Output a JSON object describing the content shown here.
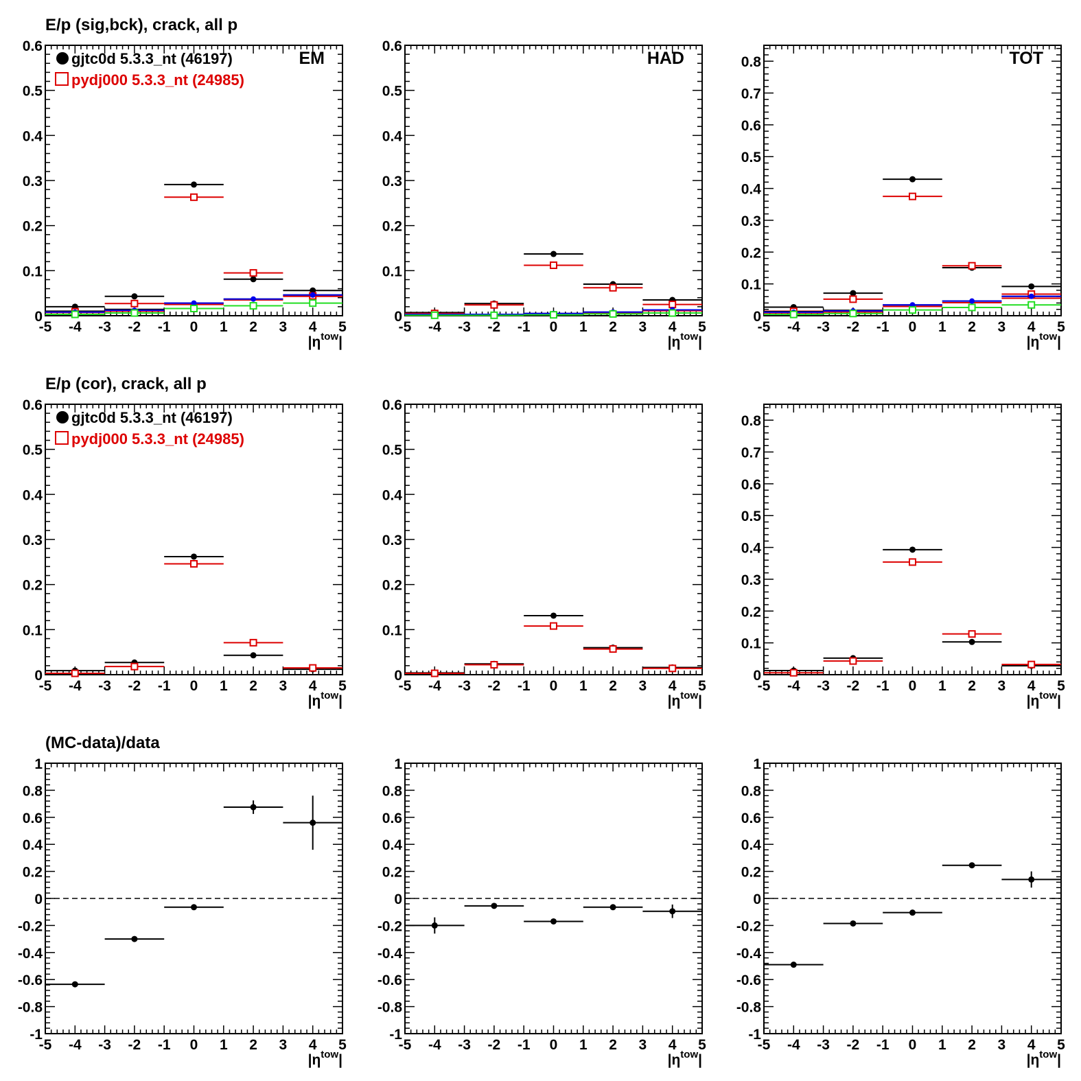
{
  "row_titles": [
    "E/p (sig,bck), crack, all p",
    "E/p (cor), crack, all p",
    "(MC-data)/data"
  ],
  "legend": {
    "data_label": "gjtc0d 5.3.3_nt (46197)",
    "mc_label": "pydj000 5.3.3_nt (24985)"
  },
  "colors": {
    "data": "#000000",
    "mc": "#dd0000",
    "blue": "#0000ee",
    "green": "#22dd22"
  },
  "chart_data": [
    {
      "type": "scatter",
      "row": 0,
      "col": 0,
      "tag": "EM",
      "legend": true,
      "xlim": [
        -5,
        5
      ],
      "ylim": [
        0,
        0.6
      ],
      "xticks": [
        "-5",
        "-4",
        "-3",
        "-2",
        "-1",
        "0",
        "1",
        "2",
        "3",
        "4",
        "5"
      ],
      "yticks": [
        "0",
        "0.1",
        "0.2",
        "0.3",
        "0.4",
        "0.5",
        "0.6"
      ],
      "xlabel": {
        "main": "|η",
        "sup": "tow",
        "close": "|"
      },
      "series": [
        {
          "key": "data",
          "style": "filled",
          "points": [
            {
              "x": -4,
              "y": 0.02
            },
            {
              "x": -2,
              "y": 0.043
            },
            {
              "x": 0,
              "y": 0.291
            },
            {
              "x": 2,
              "y": 0.081
            },
            {
              "x": 4,
              "y": 0.056
            }
          ]
        },
        {
          "key": "mc",
          "style": "open",
          "points": [
            {
              "x": -4,
              "y": 0.009
            },
            {
              "x": -2,
              "y": 0.027
            },
            {
              "x": 0,
              "y": 0.263
            },
            {
              "x": 2,
              "y": 0.095
            },
            {
              "x": 4,
              "y": 0.044
            }
          ]
        },
        {
          "key": "data",
          "style": "line",
          "points": [
            {
              "x": -4,
              "y": 0.01
            },
            {
              "x": -2,
              "y": 0.014
            },
            {
              "x": 0,
              "y": 0.028
            },
            {
              "x": 2,
              "y": 0.037
            },
            {
              "x": 4,
              "y": 0.046
            }
          ]
        },
        {
          "key": "mc",
          "style": "line",
          "points": [
            {
              "x": -4,
              "y": 0.007
            },
            {
              "x": -2,
              "y": 0.01
            },
            {
              "x": 0,
              "y": 0.025
            },
            {
              "x": 2,
              "y": 0.035
            },
            {
              "x": 4,
              "y": 0.043
            }
          ]
        },
        {
          "key": "blue",
          "style": "filled-small",
          "points": [
            {
              "x": -4,
              "y": 0.008
            },
            {
              "x": -2,
              "y": 0.012
            },
            {
              "x": 0,
              "y": 0.028
            },
            {
              "x": 2,
              "y": 0.037
            },
            {
              "x": 4,
              "y": 0.046
            }
          ]
        },
        {
          "key": "green",
          "style": "open",
          "points": [
            {
              "x": -4,
              "y": 0.003
            },
            {
              "x": -2,
              "y": 0.006
            },
            {
              "x": 0,
              "y": 0.016
            },
            {
              "x": 2,
              "y": 0.022
            },
            {
              "x": 4,
              "y": 0.028
            }
          ]
        }
      ]
    },
    {
      "type": "scatter",
      "row": 0,
      "col": 1,
      "tag": "HAD",
      "legend": false,
      "xlim": [
        -5,
        5
      ],
      "ylim": [
        0,
        0.6
      ],
      "xticks": [
        "-5",
        "-4",
        "-3",
        "-2",
        "-1",
        "0",
        "1",
        "2",
        "3",
        "4",
        "5"
      ],
      "yticks": [
        "0",
        "0.1",
        "0.2",
        "0.3",
        "0.4",
        "0.5",
        "0.6"
      ],
      "xlabel": {
        "main": "|η",
        "sup": "tow",
        "close": "|"
      },
      "series": [
        {
          "key": "data",
          "style": "filled",
          "points": [
            {
              "x": -4,
              "y": 0.007
            },
            {
              "x": -2,
              "y": 0.027
            },
            {
              "x": 0,
              "y": 0.137
            },
            {
              "x": 2,
              "y": 0.07
            },
            {
              "x": 4,
              "y": 0.035
            }
          ]
        },
        {
          "key": "mc",
          "style": "open",
          "points": [
            {
              "x": -4,
              "y": 0.005
            },
            {
              "x": -2,
              "y": 0.024
            },
            {
              "x": 0,
              "y": 0.112
            },
            {
              "x": 2,
              "y": 0.062
            },
            {
              "x": 4,
              "y": 0.025
            }
          ]
        },
        {
          "key": "data",
          "style": "line",
          "points": [
            {
              "x": -4,
              "y": 0.003
            },
            {
              "x": -2,
              "y": 0.003
            },
            {
              "x": 0,
              "y": 0.005
            },
            {
              "x": 2,
              "y": 0.008
            },
            {
              "x": 4,
              "y": 0.013
            }
          ]
        },
        {
          "key": "mc",
          "style": "line",
          "points": [
            {
              "x": -4,
              "y": 0.002
            },
            {
              "x": -2,
              "y": 0.002
            },
            {
              "x": 0,
              "y": 0.004
            },
            {
              "x": 2,
              "y": 0.006
            },
            {
              "x": 4,
              "y": 0.011
            }
          ]
        },
        {
          "key": "blue",
          "style": "filled-small",
          "points": [
            {
              "x": -4,
              "y": 0.003
            },
            {
              "x": -2,
              "y": 0.003
            },
            {
              "x": 0,
              "y": 0.005
            },
            {
              "x": 2,
              "y": 0.008
            },
            {
              "x": 4,
              "y": 0.013
            }
          ]
        },
        {
          "key": "green",
          "style": "open",
          "points": [
            {
              "x": -4,
              "y": 0.001
            },
            {
              "x": -2,
              "y": 0.001
            },
            {
              "x": 0,
              "y": 0.002
            },
            {
              "x": 2,
              "y": 0.004
            },
            {
              "x": 4,
              "y": 0.006
            }
          ]
        }
      ]
    },
    {
      "type": "scatter",
      "row": 0,
      "col": 2,
      "tag": "TOT",
      "legend": false,
      "xlim": [
        -5,
        5
      ],
      "ylim": [
        0,
        0.85
      ],
      "xticks": [
        "-5",
        "-4",
        "-3",
        "-2",
        "-1",
        "0",
        "1",
        "2",
        "3",
        "4",
        "5"
      ],
      "yticks": [
        "0",
        "0.1",
        "0.2",
        "0.3",
        "0.4",
        "0.5",
        "0.6",
        "0.7",
        "0.8"
      ],
      "xlabel": {
        "main": "|η",
        "sup": "tow",
        "close": "|"
      },
      "series": [
        {
          "key": "data",
          "style": "filled",
          "points": [
            {
              "x": -4,
              "y": 0.027
            },
            {
              "x": -2,
              "y": 0.071
            },
            {
              "x": 0,
              "y": 0.429
            },
            {
              "x": 2,
              "y": 0.151
            },
            {
              "x": 4,
              "y": 0.092
            }
          ]
        },
        {
          "key": "mc",
          "style": "open",
          "points": [
            {
              "x": -4,
              "y": 0.014
            },
            {
              "x": -2,
              "y": 0.052
            },
            {
              "x": 0,
              "y": 0.375
            },
            {
              "x": 2,
              "y": 0.157
            },
            {
              "x": 4,
              "y": 0.068
            }
          ]
        },
        {
          "key": "data",
          "style": "line",
          "points": [
            {
              "x": -4,
              "y": 0.013
            },
            {
              "x": -2,
              "y": 0.017
            },
            {
              "x": 0,
              "y": 0.034
            },
            {
              "x": 2,
              "y": 0.046
            },
            {
              "x": 4,
              "y": 0.061
            }
          ]
        },
        {
          "key": "mc",
          "style": "line",
          "points": [
            {
              "x": -4,
              "y": 0.009
            },
            {
              "x": -2,
              "y": 0.012
            },
            {
              "x": 0,
              "y": 0.029
            },
            {
              "x": 2,
              "y": 0.041
            },
            {
              "x": 4,
              "y": 0.055
            }
          ]
        },
        {
          "key": "blue",
          "style": "filled-small",
          "points": [
            {
              "x": -4,
              "y": 0.011
            },
            {
              "x": -2,
              "y": 0.015
            },
            {
              "x": 0,
              "y": 0.034
            },
            {
              "x": 2,
              "y": 0.046
            },
            {
              "x": 4,
              "y": 0.061
            }
          ]
        },
        {
          "key": "green",
          "style": "open",
          "points": [
            {
              "x": -4,
              "y": 0.004
            },
            {
              "x": -2,
              "y": 0.007
            },
            {
              "x": 0,
              "y": 0.018
            },
            {
              "x": 2,
              "y": 0.026
            },
            {
              "x": 4,
              "y": 0.034
            }
          ]
        }
      ]
    },
    {
      "type": "scatter",
      "row": 1,
      "col": 0,
      "tag": "",
      "legend": true,
      "xlim": [
        -5,
        5
      ],
      "ylim": [
        0,
        0.6
      ],
      "xticks": [
        "-5",
        "-4",
        "-3",
        "-2",
        "-1",
        "0",
        "1",
        "2",
        "3",
        "4",
        "5"
      ],
      "yticks": [
        "0",
        "0.1",
        "0.2",
        "0.3",
        "0.4",
        "0.5",
        "0.6"
      ],
      "xlabel": {
        "main": "|η",
        "sup": "tow",
        "close": "|"
      },
      "series": [
        {
          "key": "data",
          "style": "filled",
          "points": [
            {
              "x": -4,
              "y": 0.009
            },
            {
              "x": -2,
              "y": 0.027
            },
            {
              "x": 0,
              "y": 0.262
            },
            {
              "x": 2,
              "y": 0.043
            },
            {
              "x": 4,
              "y": 0.012
            }
          ]
        },
        {
          "key": "mc",
          "style": "open",
          "points": [
            {
              "x": -4,
              "y": 0.003
            },
            {
              "x": -2,
              "y": 0.018
            },
            {
              "x": 0,
              "y": 0.246
            },
            {
              "x": 2,
              "y": 0.071
            },
            {
              "x": 4,
              "y": 0.015
            }
          ]
        }
      ]
    },
    {
      "type": "scatter",
      "row": 1,
      "col": 1,
      "tag": "",
      "legend": false,
      "xlim": [
        -5,
        5
      ],
      "ylim": [
        0,
        0.6
      ],
      "xticks": [
        "-5",
        "-4",
        "-3",
        "-2",
        "-1",
        "0",
        "1",
        "2",
        "3",
        "4",
        "5"
      ],
      "yticks": [
        "0",
        "0.1",
        "0.2",
        "0.3",
        "0.4",
        "0.5",
        "0.6"
      ],
      "xlabel": {
        "main": "|η",
        "sup": "tow",
        "close": "|"
      },
      "series": [
        {
          "key": "data",
          "style": "filled",
          "points": [
            {
              "x": -4,
              "y": 0.004
            },
            {
              "x": -2,
              "y": 0.024
            },
            {
              "x": 0,
              "y": 0.131
            },
            {
              "x": 2,
              "y": 0.06
            },
            {
              "x": 4,
              "y": 0.016
            }
          ]
        },
        {
          "key": "mc",
          "style": "open",
          "points": [
            {
              "x": -4,
              "y": 0.003
            },
            {
              "x": -2,
              "y": 0.022
            },
            {
              "x": 0,
              "y": 0.108
            },
            {
              "x": 2,
              "y": 0.057
            },
            {
              "x": 4,
              "y": 0.014
            }
          ]
        }
      ]
    },
    {
      "type": "scatter",
      "row": 1,
      "col": 2,
      "tag": "",
      "legend": false,
      "xlim": [
        -5,
        5
      ],
      "ylim": [
        0,
        0.85
      ],
      "xticks": [
        "-5",
        "-4",
        "-3",
        "-2",
        "-1",
        "0",
        "1",
        "2",
        "3",
        "4",
        "5"
      ],
      "yticks": [
        "0",
        "0.1",
        "0.2",
        "0.3",
        "0.4",
        "0.5",
        "0.6",
        "0.7",
        "0.8"
      ],
      "xlabel": {
        "main": "|η",
        "sup": "tow",
        "close": "|"
      },
      "series": [
        {
          "key": "data",
          "style": "filled",
          "points": [
            {
              "x": -4,
              "y": 0.013
            },
            {
              "x": -2,
              "y": 0.052
            },
            {
              "x": 0,
              "y": 0.393
            },
            {
              "x": 2,
              "y": 0.103
            },
            {
              "x": 4,
              "y": 0.028
            }
          ]
        },
        {
          "key": "mc",
          "style": "open",
          "points": [
            {
              "x": -4,
              "y": 0.006
            },
            {
              "x": -2,
              "y": 0.043
            },
            {
              "x": 0,
              "y": 0.354
            },
            {
              "x": 2,
              "y": 0.128
            },
            {
              "x": 4,
              "y": 0.032
            }
          ]
        }
      ]
    },
    {
      "type": "scatter",
      "row": 2,
      "col": 0,
      "tag": "",
      "legend": false,
      "zero_line": true,
      "xlim": [
        -5,
        5
      ],
      "ylim": [
        -1,
        1
      ],
      "xticks": [
        "-5",
        "-4",
        "-3",
        "-2",
        "-1",
        "0",
        "1",
        "2",
        "3",
        "4",
        "5"
      ],
      "yticks": [
        "-1",
        "-0.8",
        "-0.6",
        "-0.4",
        "-0.2",
        "0",
        "0.2",
        "0.4",
        "0.6",
        "0.8",
        "1"
      ],
      "xlabel": {
        "main": "|η",
        "sup": "tow",
        "close": "|"
      },
      "series": [
        {
          "key": "data",
          "style": "filled",
          "points": [
            {
              "x": -4,
              "y": -0.635,
              "err": 0.012
            },
            {
              "x": -2,
              "y": -0.3,
              "err": 0.01
            },
            {
              "x": 0,
              "y": -0.065,
              "err": 0.008
            },
            {
              "x": 2,
              "y": 0.675,
              "err": 0.05
            },
            {
              "x": 4,
              "y": 0.56,
              "err": 0.2
            }
          ]
        }
      ]
    },
    {
      "type": "scatter",
      "row": 2,
      "col": 1,
      "tag": "",
      "legend": false,
      "zero_line": true,
      "xlim": [
        -5,
        5
      ],
      "ylim": [
        -1,
        1
      ],
      "xticks": [
        "-5",
        "-4",
        "-3",
        "-2",
        "-1",
        "0",
        "1",
        "2",
        "3",
        "4",
        "5"
      ],
      "yticks": [
        "-1",
        "-0.8",
        "-0.6",
        "-0.4",
        "-0.2",
        "0",
        "0.2",
        "0.4",
        "0.6",
        "0.8",
        "1"
      ],
      "xlabel": {
        "main": "|η",
        "sup": "tow",
        "close": "|"
      },
      "series": [
        {
          "key": "data",
          "style": "filled",
          "points": [
            {
              "x": -4,
              "y": -0.2,
              "err": 0.06
            },
            {
              "x": -2,
              "y": -0.055,
              "err": 0.015
            },
            {
              "x": 0,
              "y": -0.17,
              "err": 0.01
            },
            {
              "x": 2,
              "y": -0.065,
              "err": 0.012
            },
            {
              "x": 4,
              "y": -0.095,
              "err": 0.05
            }
          ]
        }
      ]
    },
    {
      "type": "scatter",
      "row": 2,
      "col": 2,
      "tag": "",
      "legend": false,
      "zero_line": true,
      "xlim": [
        -5,
        5
      ],
      "ylim": [
        -1,
        1
      ],
      "xticks": [
        "-5",
        "-4",
        "-3",
        "-2",
        "-1",
        "0",
        "1",
        "2",
        "3",
        "4",
        "5"
      ],
      "yticks": [
        "-1",
        "-0.8",
        "-0.6",
        "-0.4",
        "-0.2",
        "0",
        "0.2",
        "0.4",
        "0.6",
        "0.8",
        "1"
      ],
      "xlabel": {
        "main": "|η",
        "sup": "tow",
        "close": "|"
      },
      "series": [
        {
          "key": "data",
          "style": "filled",
          "points": [
            {
              "x": -4,
              "y": -0.49,
              "err": 0.012
            },
            {
              "x": -2,
              "y": -0.185,
              "err": 0.01
            },
            {
              "x": 0,
              "y": -0.105,
              "err": 0.008
            },
            {
              "x": 2,
              "y": 0.245,
              "err": 0.015
            },
            {
              "x": 4,
              "y": 0.14,
              "err": 0.06
            }
          ]
        }
      ]
    }
  ]
}
